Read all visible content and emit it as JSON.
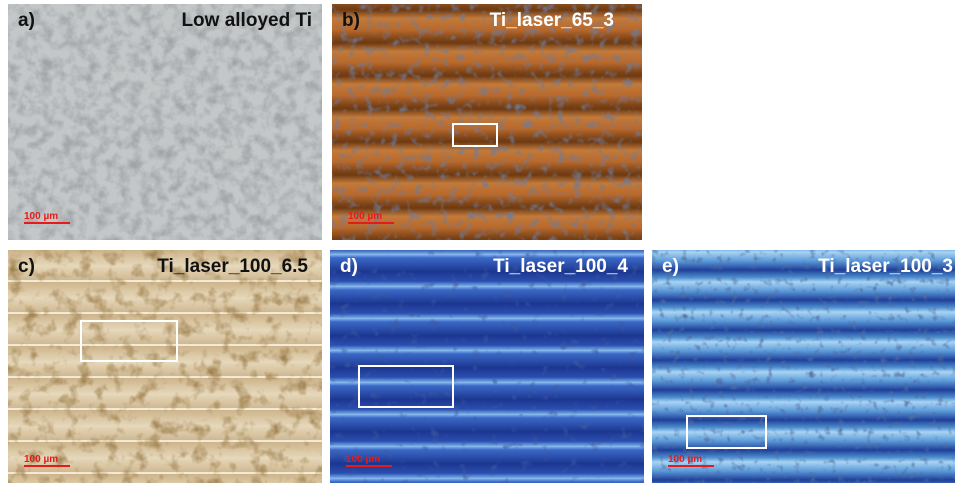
{
  "panels": {
    "a": {
      "letter": "a)",
      "title": "Low alloyed Ti",
      "scale": "100 µm"
    },
    "b": {
      "letter": "b)",
      "title": "Ti_laser_65_3",
      "scale": "100 µm"
    },
    "c": {
      "letter": "c)",
      "title": "Ti_laser_100_6.5",
      "scale": "100 µm"
    },
    "d": {
      "letter": "d)",
      "title": "Ti_laser_100_4",
      "scale": "100 µm"
    },
    "e": {
      "letter": "e)",
      "title": "Ti_laser_100_3",
      "scale": "100 µm"
    }
  },
  "colors": {
    "scale_bar": "#e51b1b",
    "roi_box": "#ffffff",
    "a_base": "#b9bcbd",
    "b_base": "#b8692c",
    "c_base": "#d7c29c",
    "d_base": "#2a4fb0",
    "e_base": "#4d8fd0"
  }
}
